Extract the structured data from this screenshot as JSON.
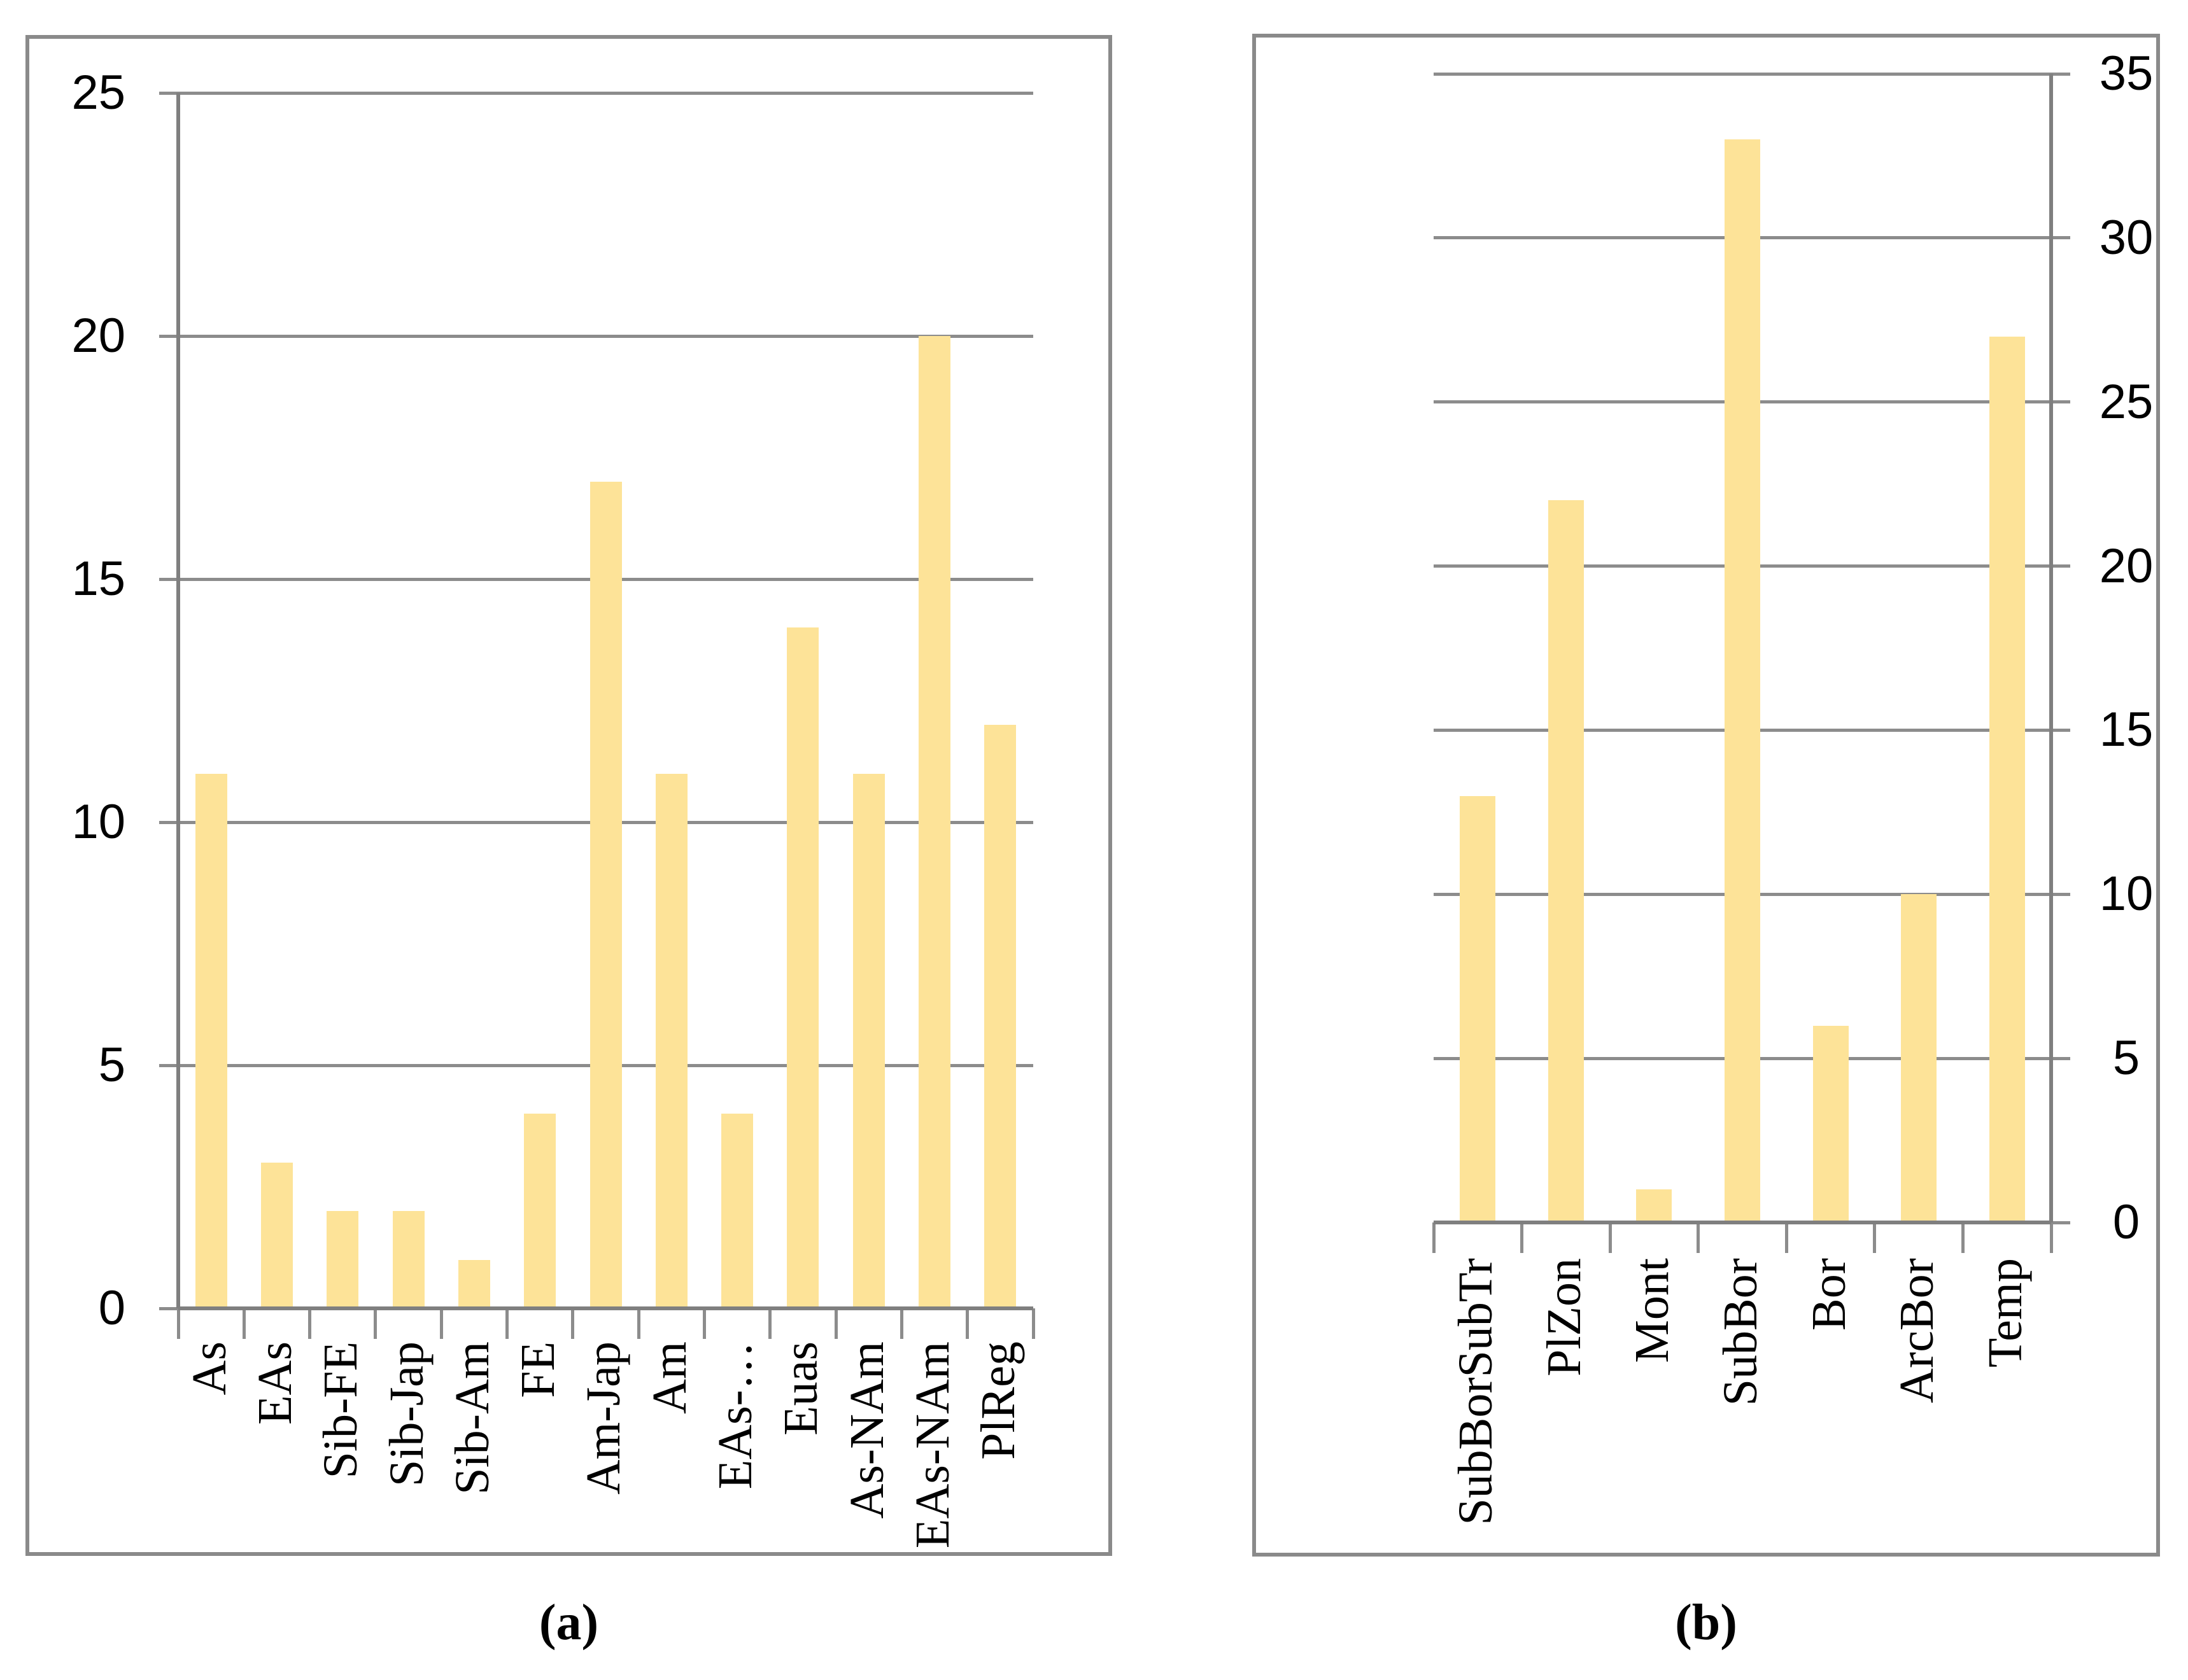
{
  "figure": {
    "background": "#FFFFFF",
    "bar_color": "#FDE398",
    "grid_color": "#8C8C8C",
    "axis_color": "#7F7F7F",
    "border_color": "#8A8A8A",
    "text_color": "#000000"
  },
  "chart_data": [
    {
      "id": "a",
      "type": "bar",
      "caption": "(a)",
      "title": "",
      "xlabel": "",
      "ylabel": "",
      "categories": [
        "As",
        "EAs",
        "Sib-FE",
        "Sib-Jap",
        "Sib-Am",
        "FE",
        "Am-Jap",
        "Am",
        "EAs-…",
        "Euas",
        "As-NAm",
        "EAs-NAm",
        "PlReg"
      ],
      "values": [
        11,
        3,
        2,
        2,
        1,
        4,
        17,
        11,
        4,
        14,
        11,
        20,
        12
      ],
      "ylim": [
        0,
        25
      ],
      "yticks": [
        0,
        5,
        10,
        15,
        20,
        25
      ],
      "value_axis_side": "left",
      "grid": true,
      "legend": false,
      "category_label_rotation": "vertical-bottom-to-top"
    },
    {
      "id": "b",
      "type": "bar",
      "caption": "(b)",
      "title": "",
      "xlabel": "",
      "ylabel": "",
      "categories": [
        "SubBorSubTr",
        "PlZon",
        "Mont",
        "SubBor",
        "Bor",
        "ArcBor",
        "Temp"
      ],
      "values": [
        13,
        22,
        1,
        33,
        6,
        10,
        27
      ],
      "ylim": [
        0,
        35
      ],
      "yticks": [
        0,
        5,
        10,
        15,
        20,
        25,
        30,
        35
      ],
      "value_axis_side": "right",
      "grid": true,
      "legend": false,
      "category_label_rotation": "vertical-bottom-to-top"
    }
  ]
}
